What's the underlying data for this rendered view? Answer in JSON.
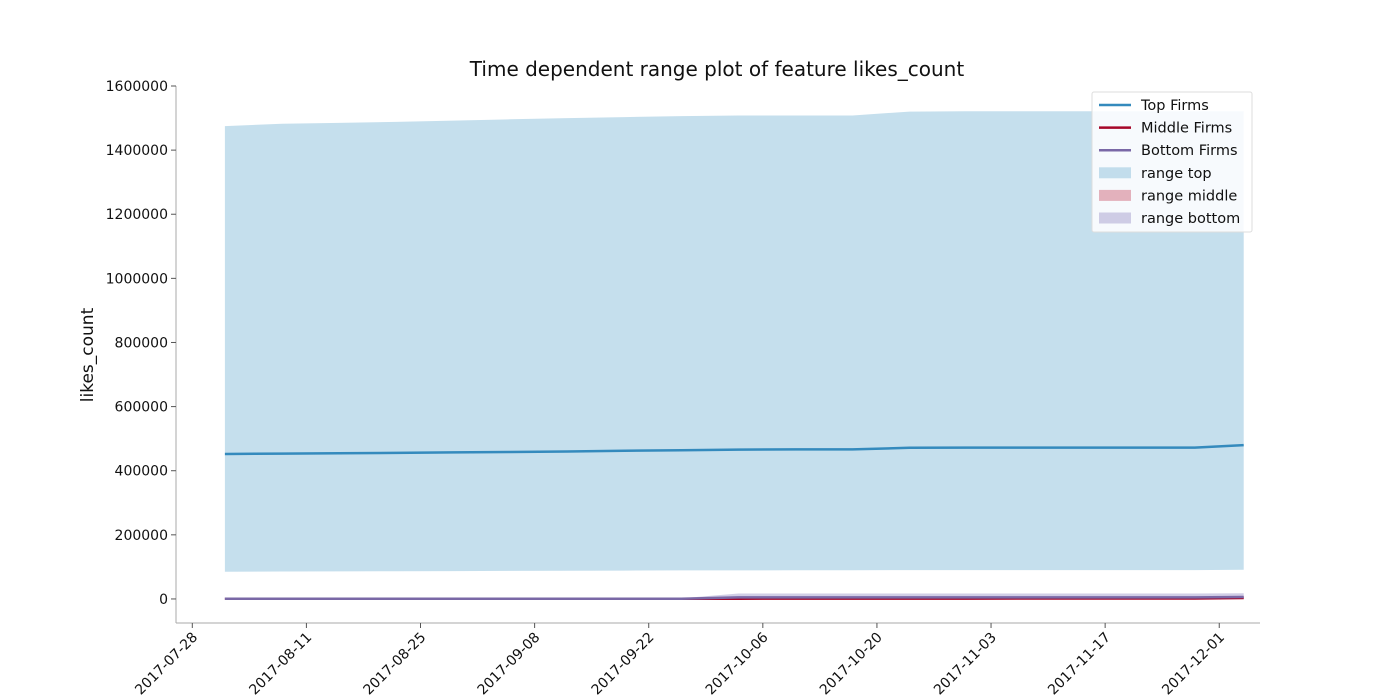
{
  "chart_data": {
    "type": "area",
    "title": "Time dependent range plot of feature likes_count",
    "xlabel": "",
    "ylabel": "likes_count",
    "x_type": "date",
    "xlim": [
      "2017-07-26",
      "2017-12-06"
    ],
    "ylim": [
      -75000,
      1600000
    ],
    "x_ticks": [
      "2017-07-28",
      "2017-08-11",
      "2017-08-25",
      "2017-09-08",
      "2017-09-22",
      "2017-10-06",
      "2017-10-20",
      "2017-11-03",
      "2017-11-17",
      "2017-12-01"
    ],
    "y_ticks": [
      0,
      200000,
      400000,
      600000,
      800000,
      1000000,
      1200000,
      1400000,
      1600000
    ],
    "grid": false,
    "legend_position": "top-right",
    "x": [
      "2017-08-01",
      "2017-08-08",
      "2017-08-15",
      "2017-08-22",
      "2017-08-29",
      "2017-09-05",
      "2017-09-12",
      "2017-09-19",
      "2017-09-26",
      "2017-10-03",
      "2017-10-10",
      "2017-10-17",
      "2017-10-24",
      "2017-10-31",
      "2017-11-07",
      "2017-11-14",
      "2017-11-21",
      "2017-11-28",
      "2017-12-04"
    ],
    "series": [
      {
        "name": "Top Firms",
        "color": "#348abd",
        "values": [
          452000,
          453500,
          454500,
          455500,
          457000,
          458500,
          460000,
          462000,
          464000,
          466000,
          466500,
          466500,
          471500,
          472000,
          472000,
          472000,
          472000,
          472000,
          480000
        ],
        "range_name": "range top",
        "range_color": "#a6cee3",
        "range_low": [
          85000,
          85500,
          86000,
          86500,
          87000,
          87500,
          88000,
          88500,
          89000,
          89000,
          89500,
          89500,
          90000,
          90000,
          90000,
          90000,
          90000,
          90000,
          91000
        ],
        "range_high": [
          1475000,
          1482000,
          1485000,
          1488000,
          1492000,
          1496000,
          1500000,
          1503000,
          1506000,
          1508000,
          1508000,
          1508000,
          1520000,
          1521000,
          1521000,
          1521000,
          1521000,
          1521000,
          1521000
        ]
      },
      {
        "name": "Middle Firms",
        "color": "#a60628",
        "values": [
          500,
          500,
          500,
          500,
          600,
          600,
          600,
          700,
          700,
          900,
          1000,
          1000,
          1200,
          1200,
          1300,
          1300,
          1300,
          1400,
          3000
        ],
        "range_name": "range middle",
        "range_color": "#d98a9a",
        "range_low": [
          0,
          0,
          0,
          0,
          0,
          0,
          0,
          0,
          0,
          0,
          0,
          0,
          0,
          0,
          0,
          0,
          0,
          0,
          0
        ],
        "range_high": [
          2000,
          2000,
          2000,
          2000,
          2000,
          2000,
          2000,
          2000,
          2000,
          4000,
          4500,
          4500,
          5000,
          5000,
          5000,
          5000,
          5000,
          5000,
          9000
        ]
      },
      {
        "name": "Bottom Firms",
        "color": "#7a68a6",
        "values": [
          500,
          500,
          500,
          500,
          500,
          500,
          500,
          500,
          600,
          5000,
          5000,
          5000,
          5000,
          5000,
          5000,
          5000,
          5000,
          5000,
          6000
        ],
        "range_name": "range bottom",
        "range_color": "#b9b3d9",
        "range_low": [
          0,
          0,
          0,
          0,
          0,
          0,
          0,
          0,
          0,
          0,
          0,
          0,
          0,
          0,
          0,
          0,
          0,
          0,
          0
        ],
        "range_high": [
          2000,
          2000,
          2000,
          2000,
          2000,
          2000,
          2000,
          2000,
          2000,
          17000,
          17000,
          17000,
          17000,
          17000,
          17000,
          17000,
          17000,
          17000,
          18000
        ]
      }
    ]
  }
}
